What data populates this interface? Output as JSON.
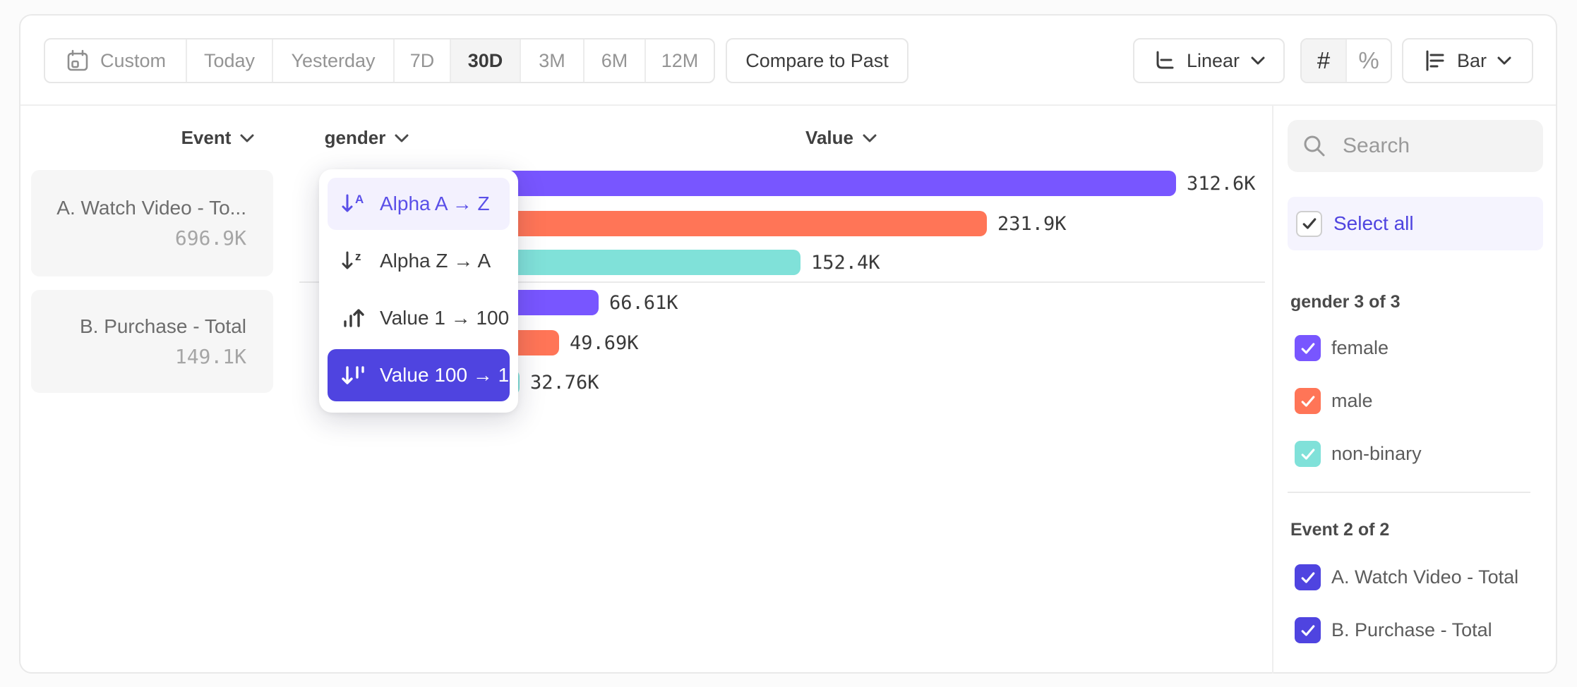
{
  "toolbar": {
    "date_ranges": [
      "Custom",
      "Today",
      "Yesterday",
      "7D",
      "30D",
      "3M",
      "6M",
      "12M"
    ],
    "selected_range": "30D",
    "compare_button": "Compare to Past",
    "scale_selector": "Linear",
    "number_toggle": "#",
    "percent_toggle": "%",
    "chart_type_selector": "Bar"
  },
  "columns": {
    "event": "Event",
    "breakdown": "gender",
    "value": "Value"
  },
  "event_cards": [
    {
      "name": "A. Watch Video - To...",
      "total": "696.9K"
    },
    {
      "name": "B. Purchase - Total",
      "total": "149.1K"
    }
  ],
  "sort_menu": {
    "items": [
      {
        "label": "Alpha A → Z",
        "icon": "sort-alpha-asc-icon",
        "state": "hover"
      },
      {
        "label": "Alpha Z → A",
        "icon": "sort-alpha-desc-icon",
        "state": "default"
      },
      {
        "label": "Value 1 → 100",
        "icon": "sort-value-asc-icon",
        "state": "default"
      },
      {
        "label": "Value 100 → 1",
        "icon": "sort-value-desc-icon",
        "state": "selected"
      }
    ]
  },
  "chart_data": {
    "type": "bar",
    "orientation": "horizontal",
    "max_value": 312600,
    "groups": [
      {
        "event": "A. Watch Video - Total",
        "bars": [
          {
            "category": "female",
            "value": 312600,
            "label": "312.6K",
            "color": "#7856FF"
          },
          {
            "category": "male",
            "value": 231900,
            "label": "231.9K",
            "color": "#FF7557"
          },
          {
            "category": "non-binary",
            "value": 152400,
            "label": "152.4K",
            "color": "#80E1D9"
          }
        ]
      },
      {
        "event": "B. Purchase - Total",
        "bars": [
          {
            "category": "female",
            "value": 66610,
            "label": "66.61K",
            "color": "#7856FF"
          },
          {
            "category": "male",
            "value": 49690,
            "label": "49.69K",
            "color": "#FF7557"
          },
          {
            "category": "non-binary",
            "value": 32760,
            "label": "32.76K",
            "color": "#80E1D9"
          }
        ]
      }
    ]
  },
  "sidebar": {
    "search_placeholder": "Search",
    "select_all_label": "Select all",
    "groups": [
      {
        "title": "gender 3 of 3",
        "items": [
          {
            "label": "female",
            "checked": true,
            "color": "#7856FF"
          },
          {
            "label": "male",
            "checked": true,
            "color": "#FF7557"
          },
          {
            "label": "non-binary",
            "checked": true,
            "color": "#80E1D9"
          }
        ]
      },
      {
        "title": "Event 2 of 2",
        "items": [
          {
            "label": "A. Watch Video - Total",
            "checked": true,
            "color": "#4F44E0"
          },
          {
            "label": "B. Purchase - Total",
            "checked": true,
            "color": "#4F44E0"
          }
        ]
      }
    ]
  },
  "colors": {
    "accent": "#4F44E0",
    "series_purple": "#7856FF",
    "series_orange": "#FF7557",
    "series_teal": "#80E1D9"
  }
}
